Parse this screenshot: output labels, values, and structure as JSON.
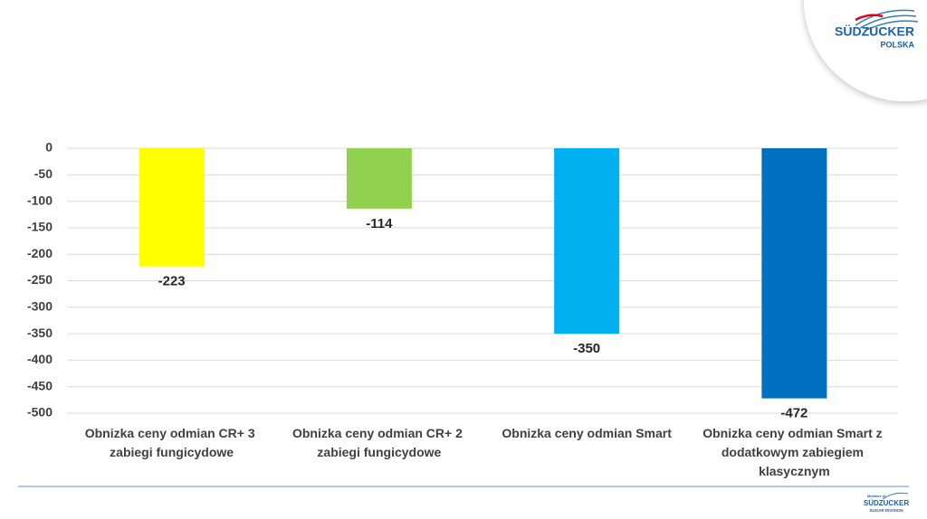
{
  "logo": {
    "brand": "SÜDZUCKER",
    "sub": "POLSKA"
  },
  "footer_logo": {
    "member": "Member of",
    "brand": "SÜDZUCKER",
    "sub": "SUGAR DIVISION"
  },
  "chart_data": {
    "type": "bar",
    "categories": [
      "Obnizka ceny odmian CR+ 3 zabiegi fungicydowe",
      "Obnizka ceny odmian CR+ 2 zabiegi fungicydowe",
      "Obnizka ceny odmian Smart",
      "Obnizka ceny odmian Smart z dodatkowym zabiegiem klasycznym"
    ],
    "values": [
      -223,
      -114,
      -350,
      -472
    ],
    "colors": [
      "#ffff00",
      "#92d050",
      "#00b0f0",
      "#0070c0"
    ],
    "ylim": [
      -500,
      0
    ],
    "yticks": [
      0,
      -50,
      -100,
      -150,
      -200,
      -250,
      -300,
      -350,
      -400,
      -450,
      -500
    ],
    "grid": true
  }
}
